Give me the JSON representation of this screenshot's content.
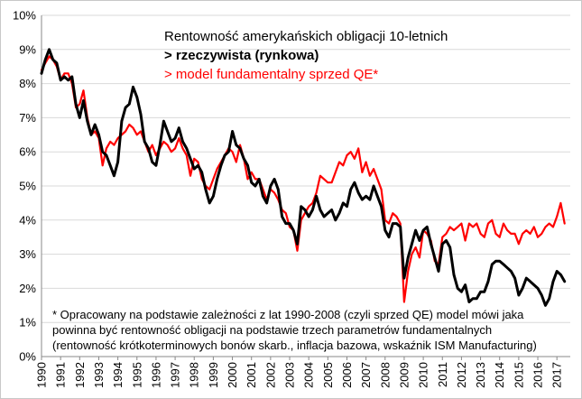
{
  "chart_data": {
    "type": "line",
    "title": "Rentowność amerykańskich obligacji 10-letnich",
    "ylim": [
      0,
      10
    ],
    "y_ticks": [
      "0%",
      "1%",
      "2%",
      "3%",
      "4%",
      "5%",
      "6%",
      "7%",
      "8%",
      "9%",
      "10%"
    ],
    "x_ticks": [
      "1990",
      "1991",
      "1992",
      "1993",
      "1994",
      "1995",
      "1996",
      "1997",
      "1998",
      "1999",
      "2000",
      "2001",
      "2002",
      "2003",
      "2004",
      "2005",
      "2006",
      "2007",
      "2008",
      "2009",
      "2010",
      "2011",
      "2012",
      "2013",
      "2014",
      "2015",
      "2016",
      "2017"
    ],
    "grid": "horizontal",
    "colors": {
      "actual": "#000000",
      "model": "#ff0000"
    },
    "series": [
      {
        "name": "> rzeczywista (rynkowa)",
        "color": "#000000",
        "x": [
          1990.0,
          1990.2,
          1990.4,
          1990.6,
          1990.8,
          1991.0,
          1991.2,
          1991.4,
          1991.6,
          1991.8,
          1992.0,
          1992.2,
          1992.4,
          1992.6,
          1992.8,
          1993.0,
          1993.2,
          1993.4,
          1993.6,
          1993.8,
          1994.0,
          1994.2,
          1994.4,
          1994.6,
          1994.8,
          1995.0,
          1995.2,
          1995.4,
          1995.6,
          1995.8,
          1996.0,
          1996.2,
          1996.4,
          1996.6,
          1996.8,
          1997.0,
          1997.2,
          1997.4,
          1997.6,
          1997.8,
          1998.0,
          1998.2,
          1998.4,
          1998.6,
          1998.8,
          1999.0,
          1999.2,
          1999.4,
          1999.6,
          1999.8,
          2000.0,
          2000.2,
          2000.4,
          2000.6,
          2000.8,
          2001.0,
          2001.2,
          2001.4,
          2001.6,
          2001.8,
          2002.0,
          2002.2,
          2002.4,
          2002.6,
          2002.8,
          2003.0,
          2003.2,
          2003.4,
          2003.6,
          2003.8,
          2004.0,
          2004.2,
          2004.4,
          2004.6,
          2004.8,
          2005.0,
          2005.2,
          2005.4,
          2005.6,
          2005.8,
          2006.0,
          2006.2,
          2006.4,
          2006.6,
          2006.8,
          2007.0,
          2007.2,
          2007.4,
          2007.6,
          2007.8,
          2008.0,
          2008.2,
          2008.4,
          2008.6,
          2008.8,
          2009.0,
          2009.2,
          2009.4,
          2009.6,
          2009.8,
          2010.0,
          2010.2,
          2010.4,
          2010.6,
          2010.8,
          2011.0,
          2011.2,
          2011.4,
          2011.6,
          2011.8,
          2012.0,
          2012.2,
          2012.4,
          2012.6,
          2012.8,
          2013.0,
          2013.2,
          2013.4,
          2013.6,
          2013.8,
          2014.0,
          2014.2,
          2014.4,
          2014.6,
          2014.8,
          2015.0,
          2015.2,
          2015.4,
          2015.6,
          2015.8,
          2016.0,
          2016.2,
          2016.4,
          2016.6,
          2016.8,
          2017.0,
          2017.2,
          2017.4
        ],
        "values": [
          8.3,
          8.7,
          9.0,
          8.7,
          8.6,
          8.1,
          8.2,
          8.1,
          8.2,
          7.4,
          7.0,
          7.5,
          6.9,
          6.5,
          6.8,
          6.5,
          6.0,
          5.9,
          5.6,
          5.3,
          5.7,
          6.9,
          7.3,
          7.4,
          7.9,
          7.6,
          7.1,
          6.3,
          6.1,
          5.7,
          5.6,
          6.2,
          6.9,
          6.6,
          6.3,
          6.4,
          6.7,
          6.3,
          6.1,
          5.8,
          5.5,
          5.6,
          5.4,
          4.9,
          4.5,
          4.7,
          5.2,
          5.6,
          5.9,
          6.0,
          6.6,
          6.2,
          6.1,
          5.8,
          5.6,
          5.1,
          5.0,
          5.2,
          4.7,
          4.5,
          5.0,
          5.2,
          4.9,
          4.1,
          3.9,
          3.9,
          3.7,
          3.3,
          4.4,
          4.3,
          4.1,
          4.3,
          4.7,
          4.3,
          4.1,
          4.2,
          4.3,
          4.0,
          4.2,
          4.5,
          4.4,
          4.9,
          5.1,
          4.8,
          4.6,
          4.7,
          4.6,
          5.0,
          4.7,
          4.4,
          3.7,
          3.5,
          3.9,
          3.9,
          3.8,
          2.3,
          2.9,
          3.3,
          3.7,
          3.4,
          3.7,
          3.8,
          3.3,
          2.9,
          2.5,
          3.3,
          3.4,
          3.2,
          2.4,
          2.0,
          1.9,
          2.1,
          1.6,
          1.7,
          1.7,
          1.9,
          1.9,
          2.2,
          2.7,
          2.8,
          2.8,
          2.7,
          2.6,
          2.5,
          2.3,
          1.8,
          2.0,
          2.3,
          2.2,
          2.1,
          2.0,
          1.8,
          1.5,
          1.7,
          2.2,
          2.5,
          2.4,
          2.2
        ]
      },
      {
        "name": "> model fundamentalny sprzed QE*",
        "color": "#ff0000",
        "x": [
          1990.0,
          1990.2,
          1990.4,
          1990.6,
          1990.8,
          1991.0,
          1991.2,
          1991.4,
          1991.6,
          1991.8,
          1992.0,
          1992.2,
          1992.4,
          1992.6,
          1992.8,
          1993.0,
          1993.2,
          1993.4,
          1993.6,
          1993.8,
          1994.0,
          1994.2,
          1994.4,
          1994.6,
          1994.8,
          1995.0,
          1995.2,
          1995.4,
          1995.6,
          1995.8,
          1996.0,
          1996.2,
          1996.4,
          1996.6,
          1996.8,
          1997.0,
          1997.2,
          1997.4,
          1997.6,
          1997.8,
          1998.0,
          1998.2,
          1998.4,
          1998.6,
          1998.8,
          1999.0,
          1999.2,
          1999.4,
          1999.6,
          1999.8,
          2000.0,
          2000.2,
          2000.4,
          2000.6,
          2000.8,
          2001.0,
          2001.2,
          2001.4,
          2001.6,
          2001.8,
          2002.0,
          2002.2,
          2002.4,
          2002.6,
          2002.8,
          2003.0,
          2003.2,
          2003.4,
          2003.6,
          2003.8,
          2004.0,
          2004.2,
          2004.4,
          2004.6,
          2004.8,
          2005.0,
          2005.2,
          2005.4,
          2005.6,
          2005.8,
          2006.0,
          2006.2,
          2006.4,
          2006.6,
          2006.8,
          2007.0,
          2007.2,
          2007.4,
          2007.6,
          2007.8,
          2008.0,
          2008.2,
          2008.4,
          2008.6,
          2008.8,
          2009.0,
          2009.2,
          2009.4,
          2009.6,
          2009.8,
          2010.0,
          2010.2,
          2010.4,
          2010.6,
          2010.8,
          2011.0,
          2011.2,
          2011.4,
          2011.6,
          2011.8,
          2012.0,
          2012.2,
          2012.4,
          2012.6,
          2012.8,
          2013.0,
          2013.2,
          2013.4,
          2013.6,
          2013.8,
          2014.0,
          2014.2,
          2014.4,
          2014.6,
          2014.8,
          2015.0,
          2015.2,
          2015.4,
          2015.6,
          2015.8,
          2016.0,
          2016.2,
          2016.4,
          2016.6,
          2016.8,
          2017.0,
          2017.2,
          2017.4
        ],
        "values": [
          8.4,
          8.6,
          8.8,
          8.7,
          8.5,
          8.1,
          8.3,
          8.3,
          8.0,
          7.3,
          7.4,
          7.8,
          7.0,
          6.5,
          6.6,
          6.4,
          5.6,
          6.1,
          6.3,
          6.2,
          6.4,
          6.5,
          6.6,
          6.8,
          6.7,
          6.5,
          6.6,
          6.3,
          6.0,
          6.2,
          5.9,
          6.1,
          6.3,
          6.2,
          6.0,
          6.1,
          6.4,
          6.1,
          5.9,
          5.3,
          5.8,
          5.7,
          5.2,
          5.0,
          4.9,
          5.2,
          5.5,
          5.7,
          5.9,
          6.1,
          6.0,
          5.7,
          6.2,
          5.8,
          5.2,
          5.4,
          5.2,
          5.2,
          4.9,
          4.6,
          4.9,
          4.8,
          4.6,
          4.3,
          4.2,
          3.8,
          3.7,
          3.1,
          4.0,
          4.2,
          4.4,
          4.5,
          4.8,
          5.3,
          5.2,
          5.1,
          5.1,
          5.4,
          5.7,
          5.6,
          5.9,
          6.0,
          5.8,
          6.1,
          5.4,
          5.7,
          5.3,
          5.5,
          5.2,
          4.9,
          4.0,
          3.9,
          4.2,
          4.1,
          3.9,
          1.6,
          2.5,
          3.0,
          3.2,
          2.9,
          3.7,
          3.6,
          3.4,
          2.8,
          2.7,
          3.5,
          3.6,
          3.8,
          3.7,
          3.8,
          3.9,
          3.4,
          3.9,
          3.8,
          3.9,
          3.6,
          3.5,
          3.9,
          4.0,
          3.6,
          3.5,
          3.9,
          3.7,
          3.6,
          3.6,
          3.3,
          3.6,
          3.7,
          3.6,
          3.8,
          3.5,
          3.6,
          3.8,
          3.9,
          3.8,
          4.1,
          4.5,
          3.9
        ]
      }
    ]
  },
  "legend": {
    "title": "Rentowność amerykańskich obligacji 10-letnich",
    "actual": "> rzeczywista (rynkowa)",
    "model": "> model fundamentalny sprzed QE*"
  },
  "note": "* Opracowany na podstawie zależności z lat 1990-2008 (czyli sprzed QE) model mówi jaka powinna być rentowność obligacji na podstawie trzech parametrów fundamentalnych (rentowność krótkoterminowych bonów skarb., inflacja bazowa, wskaźnik ISM Manufacturing)"
}
